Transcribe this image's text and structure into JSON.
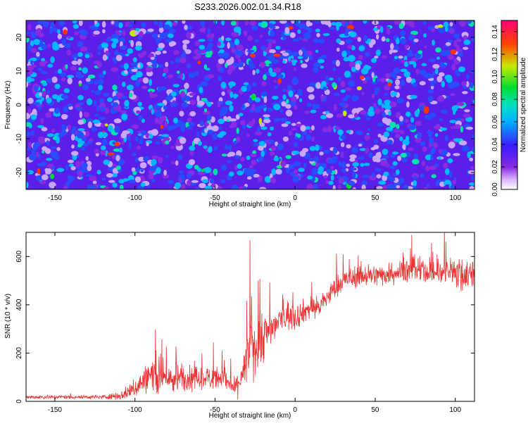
{
  "page_title": "S233.2026.002.01.34.R18",
  "colors": {
    "line_red": "#ee3333",
    "axis": "#000000",
    "background": "#ffffff"
  },
  "chart_data": [
    {
      "type": "heatmap",
      "name": "spectrogram",
      "title": "S233.2026.002.01.34.R18",
      "xlabel": "Height of straight line (km)",
      "ylabel": "Frequency (Hz)",
      "xlim": [
        -168,
        112
      ],
      "ylim": [
        -25,
        25
      ],
      "x_ticks": [
        -150,
        -100,
        -50,
        0,
        50,
        100
      ],
      "x_tick_labels": [
        "-150",
        "-100",
        "-50",
        "0",
        "50",
        "100"
      ],
      "y_ticks": [
        -20,
        -10,
        0,
        10,
        20
      ],
      "y_tick_labels": [
        "-20",
        "-10",
        "0",
        "10",
        "20"
      ],
      "colorbar": {
        "label": "Normalized spectral amplitude",
        "range": [
          0,
          0.15
        ],
        "ticks": [
          0,
          0.02,
          0.04,
          0.06,
          0.08,
          0.1,
          0.12,
          0.14
        ],
        "tick_labels": [
          "0.00",
          "0.02",
          "0.04",
          "0.06",
          "0.08",
          "0.10",
          "0.12",
          "0.14"
        ]
      },
      "pattern": "speckle noise, typical amplitude 0.02-0.05, sparse peaks up to ~0.14"
    },
    {
      "type": "line",
      "name": "snr",
      "xlabel": "Height of straight line (km)",
      "ylabel": "SNR (10 * v/v)",
      "xlim": [
        -168,
        112
      ],
      "ylim": [
        0,
        700
      ],
      "x_ticks": [
        -150,
        -100,
        -50,
        0,
        50,
        100
      ],
      "x_tick_labels": [
        "-150",
        "-100",
        "-50",
        "0",
        "50",
        "100"
      ],
      "y_ticks": [
        0,
        200,
        400,
        600
      ],
      "y_tick_labels": [
        "0",
        "200",
        "400",
        "600"
      ],
      "series": [
        {
          "name": "SNR",
          "color": "#ee3333",
          "envelope": {
            "x": [
              -168,
              -120,
              -108,
              -100,
              -90,
              -80,
              -60,
              -45,
              -38,
              -32,
              -28,
              -24,
              -20,
              -15,
              -10,
              -5,
              0,
              5,
              10,
              15,
              20,
              25,
              30,
              40,
              50,
              60,
              70,
              80,
              90,
              100,
              105,
              110
            ],
            "mean": [
              18,
              18,
              25,
              55,
              110,
              95,
              95,
              100,
              50,
              120,
              220,
              240,
              270,
              300,
              330,
              360,
              350,
              370,
              390,
              390,
              430,
              470,
              500,
              520,
              520,
              530,
              545,
              540,
              530,
              540,
              520,
              540
            ],
            "spread": [
              5,
              5,
              12,
              25,
              40,
              35,
              30,
              28,
              25,
              45,
              70,
              75,
              65,
              50,
              45,
              40,
              35,
              30,
              30,
              30,
              28,
              28,
              28,
              28,
              28,
              28,
              30,
              32,
              32,
              35,
              45,
              40
            ]
          }
        }
      ]
    }
  ]
}
